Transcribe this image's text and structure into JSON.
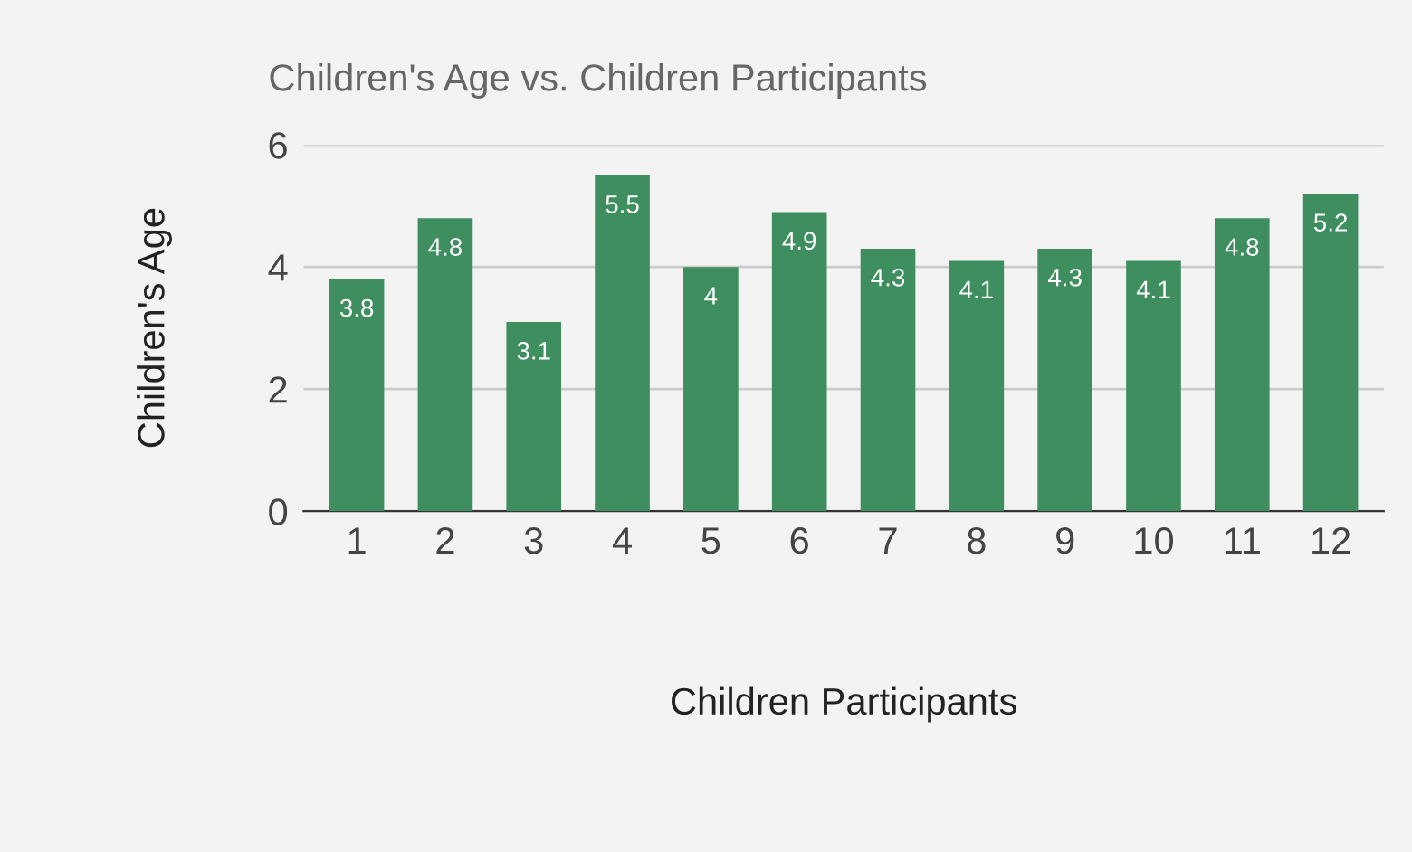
{
  "chart_data": {
    "type": "bar",
    "title": "Children's Age vs. Children Participants",
    "xlabel": "Children Participants",
    "ylabel": "Children's Age",
    "categories": [
      "1",
      "2",
      "3",
      "4",
      "5",
      "6",
      "7",
      "8",
      "9",
      "10",
      "11",
      "12"
    ],
    "values": [
      3.8,
      4.8,
      3.1,
      5.5,
      4,
      4.9,
      4.3,
      4.1,
      4.3,
      4.1,
      4.8,
      5.2
    ],
    "color": "#3e8e5f",
    "ylim": [
      0,
      6
    ],
    "yticks": [
      0,
      2,
      4,
      6
    ],
    "grid": "y",
    "data_labels": true
  }
}
